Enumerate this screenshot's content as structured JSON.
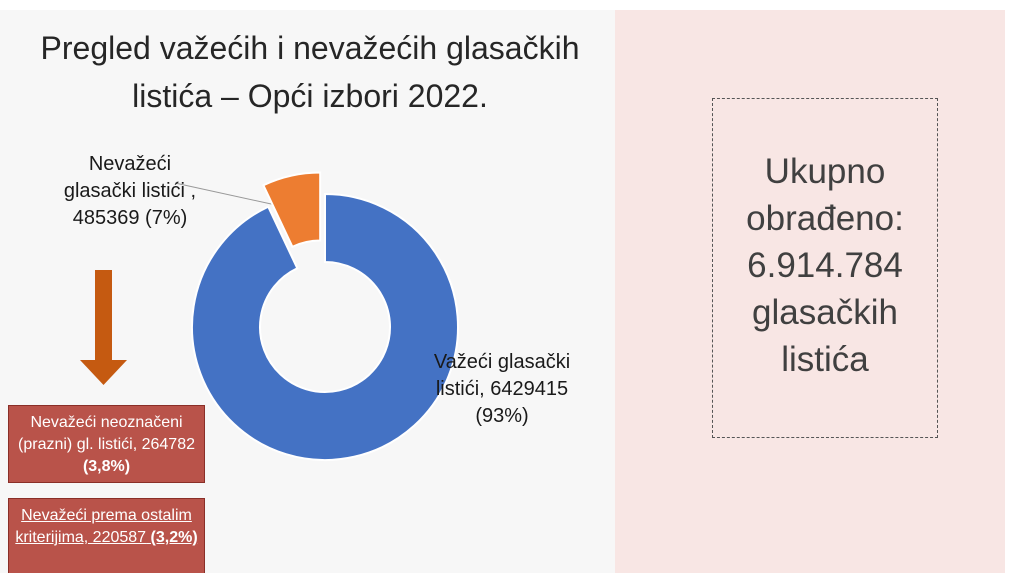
{
  "chart_data": {
    "type": "donut",
    "title": "Pregled važećih i nevažećih glasačkih listića – Opći izbori 2022.",
    "categories": [
      "Nevažeći glasački listići ,",
      "Važeći glasački listići,"
    ],
    "values": [
      485369,
      6429415
    ],
    "value_labels": [
      "485369 (7%)",
      "6429415 (93%)"
    ],
    "colors": [
      "#ed7d31",
      "#4472c4"
    ]
  },
  "boxes": [
    {
      "text": "Nevažeći neoznačeni (prazni) gl. listići, 264782",
      "bold": "(3,8%)"
    },
    {
      "text": "Nevažeći prema ostalim kriterijima, 220587",
      "bold": "(3,2%)"
    }
  ],
  "summary": "Ukupno obrađeno: 6.914.784 glasačkih listića"
}
